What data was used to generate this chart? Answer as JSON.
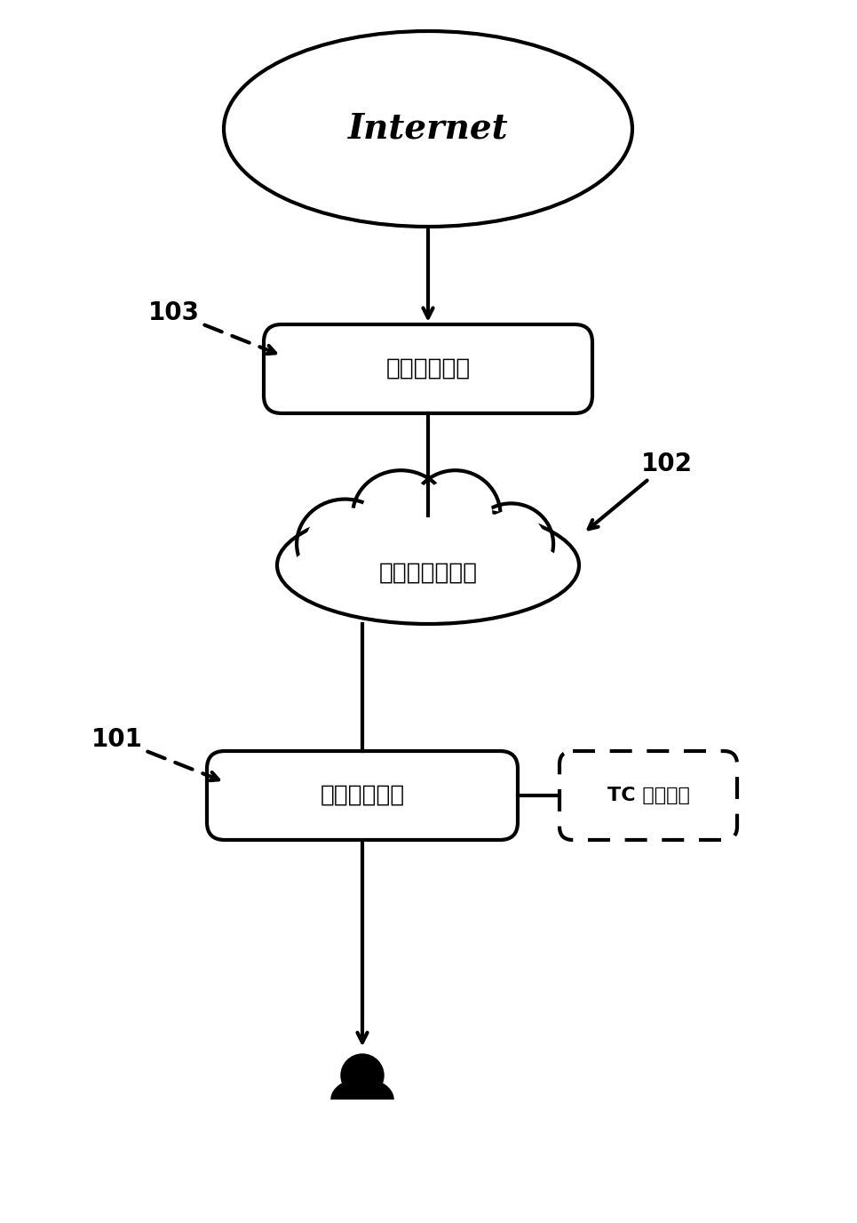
{
  "bg_color": "#ffffff",
  "internet_label": "Internet",
  "box2_label": "第二传输单元",
  "cloud_label": "异构无线接入网",
  "box1_label": "第一传输单元",
  "tc_label": "TC 调度模块",
  "label_101": "101",
  "label_102": "102",
  "label_103": "103",
  "lw": 3.0,
  "font_size_internet": 28,
  "font_size_box": 19,
  "font_size_label": 20
}
